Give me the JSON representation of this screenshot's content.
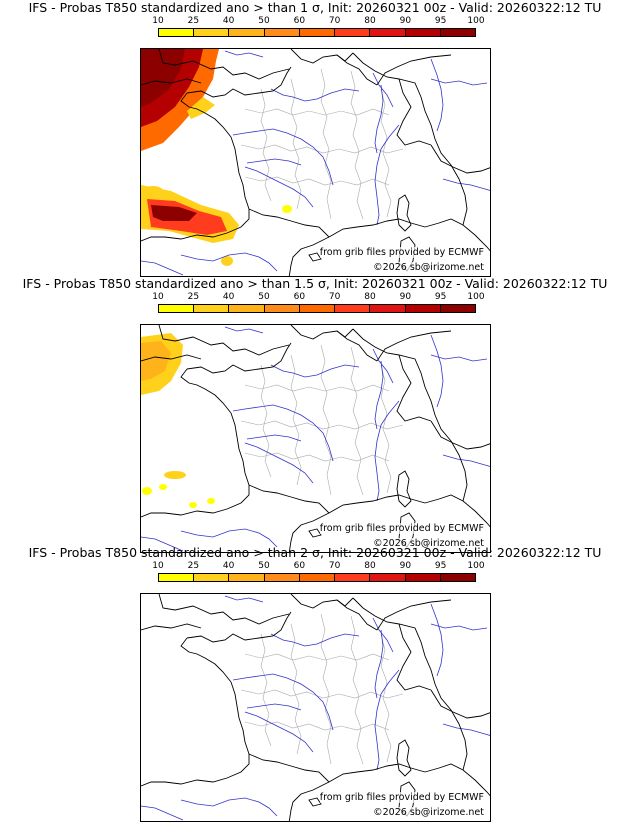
{
  "panels": [
    {
      "title": "IFS - Probas T850  standardized ano > than 1 σ, Init: 20260321 00z - Valid: 20260322:12 TU",
      "credit_source": "from grib files provided by ECMWF",
      "credit_copyright": "©2026 sb@irizome.net",
      "anomaly_level": "1 σ"
    },
    {
      "title": "IFS - Probas T850  standardized ano > than 1.5 σ, Init: 20260321 00z - Valid: 20260322:12 TU",
      "credit_source": "from grib files provided by ECMWF",
      "credit_copyright": "©2026 sb@irizome.net",
      "anomaly_level": "1.5 σ"
    },
    {
      "title": "IFS - Probas T850  standardized ano > than 2 σ, Init: 20260321 00z - Valid: 20260322:12 TU",
      "credit_source": "from grib files provided by ECMWF",
      "credit_copyright": "©2026 sb@irizome.net",
      "anomaly_level": "2 σ"
    }
  ],
  "legend": {
    "ticks": [
      "10",
      "25",
      "40",
      "50",
      "60",
      "70",
      "80",
      "90",
      "95",
      "100"
    ],
    "colors": [
      "#ffff00",
      "#ffd11a",
      "#ffb31a",
      "#ff8c1a",
      "#ff6a00",
      "#ff3c1e",
      "#e11414",
      "#b40000",
      "#8c0000"
    ]
  },
  "map_colors": {
    "coast": "#000000",
    "rivers": "#3333cc",
    "borders": "#aaaaaa"
  }
}
